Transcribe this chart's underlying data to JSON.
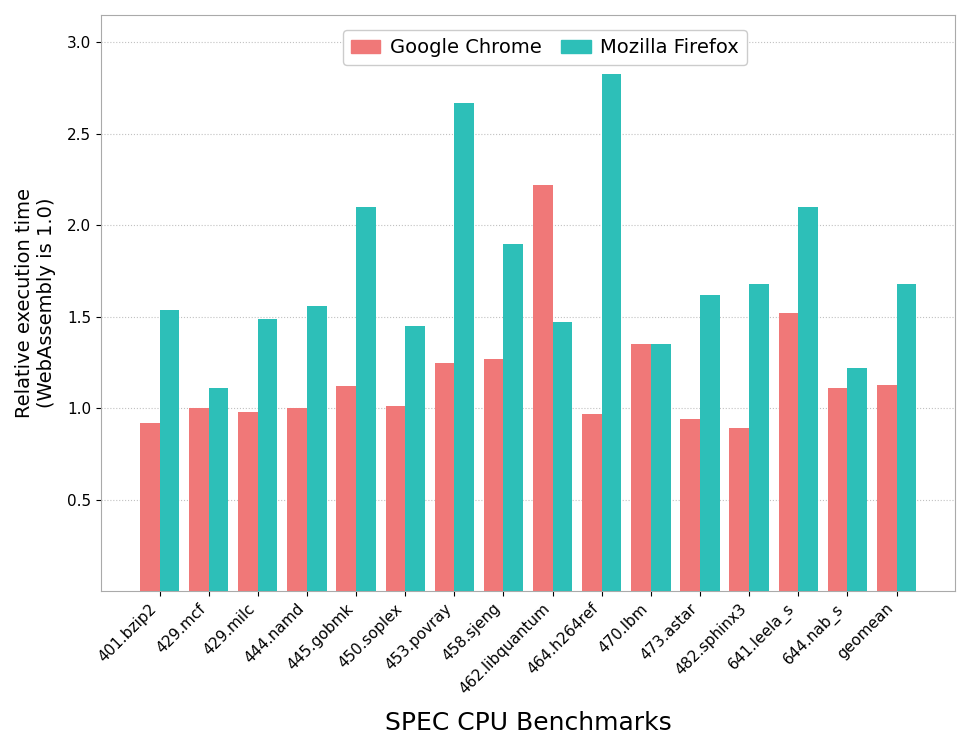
{
  "categories": [
    "401.bzip2",
    "429.mcf",
    "429.milc",
    "444.namd",
    "445.gobmk",
    "450.soplex",
    "453.povray",
    "458.sjeng",
    "462.libquantum",
    "464.h264ref",
    "470.lbm",
    "473.astar",
    "482.sphinx3",
    "641.leela_s",
    "644.nab_s",
    "geomean"
  ],
  "chrome_values": [
    0.92,
    1.0,
    0.98,
    1.0,
    1.12,
    1.01,
    1.25,
    1.27,
    2.22,
    0.97,
    1.35,
    0.94,
    0.89,
    1.52,
    1.11,
    1.13
  ],
  "firefox_values": [
    1.54,
    1.11,
    1.49,
    1.56,
    2.1,
    1.45,
    2.67,
    1.9,
    1.47,
    2.83,
    1.35,
    1.62,
    1.68,
    2.1,
    1.22,
    1.68
  ],
  "chrome_color": "#F07878",
  "firefox_color": "#2DBFB8",
  "xlabel": "SPEC CPU Benchmarks",
  "ylabel": "Relative execution time\n(WebAssembly is 1.0)",
  "ylim": [
    0,
    3.15
  ],
  "yticks": [
    0.5,
    1.0,
    1.5,
    2.0,
    2.5,
    3.0
  ],
  "legend_chrome": "Google Chrome",
  "legend_firefox": "Mozilla Firefox",
  "background_color": "#FFFFFF",
  "grid_color": "#BBBBBB",
  "bar_width": 0.4,
  "xlabel_fontsize": 18,
  "ylabel_fontsize": 14,
  "tick_fontsize": 11,
  "legend_fontsize": 14
}
